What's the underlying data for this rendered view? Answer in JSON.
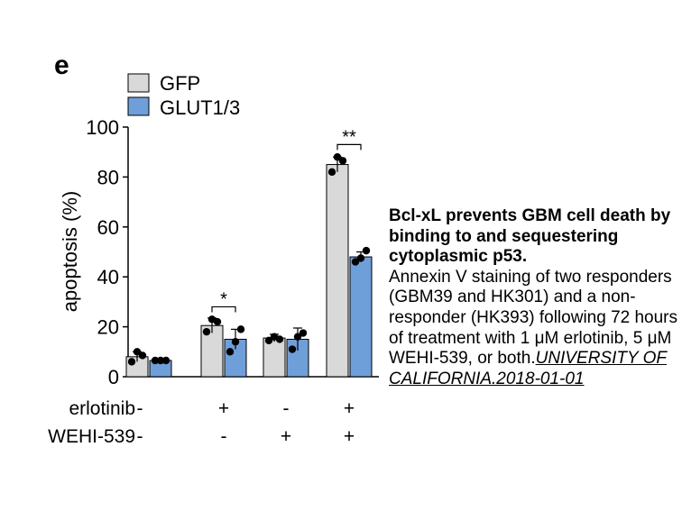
{
  "panel_label": "e",
  "caption": {
    "title": "Bcl-xL prevents GBM cell death by binding to and sequestering cytoplasmic p53.",
    "body": "Annexin V staining of two responders (GBM39 and HK301) and a non-responder (HK393) following 72 hours of treatment with 1 μM erlotinib, 5 μM WEHI-539, or both.",
    "source": "UNIVERSITY OF CALIFORNIA.2018-01-01"
  },
  "chart_data": {
    "type": "bar",
    "ylabel": "apoptosis (%)",
    "ylim": [
      0,
      100
    ],
    "yticks": [
      0,
      20,
      40,
      60,
      80,
      100
    ],
    "legend_position": "top-left",
    "categories": [
      "1",
      "2",
      "3",
      "4"
    ],
    "condition_rows": [
      {
        "label": "erlotinib",
        "values": [
          "-",
          "+",
          "-",
          "+"
        ]
      },
      {
        "label": "WEHI-539",
        "values": [
          "-",
          "-",
          "+",
          "+"
        ]
      }
    ],
    "series": [
      {
        "name": "GFP",
        "color": "#d9d9d9",
        "values": [
          8,
          20.5,
          15.5,
          85
        ],
        "errors": [
          2,
          3,
          1.5,
          3
        ],
        "points": [
          [
            6,
            10,
            8.5
          ],
          [
            18,
            23,
            22
          ],
          [
            14.5,
            16,
            15
          ],
          [
            82,
            88,
            86.5
          ]
        ]
      },
      {
        "name": "GLUT1/3",
        "color": "#6f9fd8",
        "values": [
          6.5,
          15,
          15,
          48
        ],
        "errors": [
          0.5,
          4,
          4.5,
          2
        ],
        "points": [
          [
            6.5,
            6.5,
            6.5
          ],
          [
            10,
            14,
            19
          ],
          [
            11,
            16,
            17.5
          ],
          [
            46,
            47.5,
            50.5
          ]
        ]
      }
    ],
    "significance": [
      {
        "category_index": 1,
        "label": "*",
        "y": 28
      },
      {
        "category_index": 3,
        "label": "**",
        "y": 93
      }
    ]
  }
}
